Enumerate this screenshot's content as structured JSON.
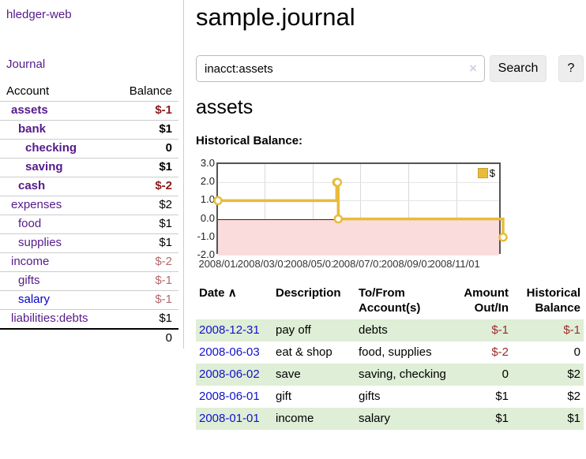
{
  "colors": {
    "link_purple": "#551a8b",
    "link_blue": "#0000cc",
    "negative_bold": "#8b1a1a",
    "negative_soft": "#b5686c",
    "negative_table": "#9e2a2b",
    "row_green": "#dfeed6",
    "series_gold": "#e8bb3a",
    "chart_negative_fill": "#fbdcdc",
    "zero_line": "#8b0000",
    "chart_border": "#545454"
  },
  "sidebar": {
    "brand": "hledger-web",
    "journal_link": "Journal",
    "table_headers": {
      "account": "Account",
      "balance": "Balance"
    },
    "accounts": [
      {
        "name": "assets",
        "balance": "$-1",
        "level": 0,
        "bold": true,
        "neg": "bold"
      },
      {
        "name": "bank",
        "balance": "$1",
        "level": 1,
        "bold": true,
        "neg": null
      },
      {
        "name": "checking",
        "balance": "0",
        "level": 2,
        "bold": true,
        "neg": null
      },
      {
        "name": "saving",
        "balance": "$1",
        "level": 2,
        "bold": true,
        "neg": null
      },
      {
        "name": "cash",
        "balance": "$-2",
        "level": 1,
        "bold": true,
        "neg": "bold"
      },
      {
        "name": "expenses",
        "balance": "$2",
        "level": 0,
        "bold": false,
        "neg": null
      },
      {
        "name": "food",
        "balance": "$1",
        "level": 1,
        "bold": false,
        "neg": null
      },
      {
        "name": "supplies",
        "balance": "$1",
        "level": 1,
        "bold": false,
        "neg": null
      },
      {
        "name": "income",
        "balance": "$-2",
        "level": 0,
        "bold": false,
        "neg": "soft"
      },
      {
        "name": "gifts",
        "balance": "$-1",
        "level": 1,
        "bold": false,
        "neg": "soft"
      },
      {
        "name": "salary",
        "balance": "$-1",
        "level": 1,
        "bold": false,
        "neg": "soft",
        "link_color": "blue"
      },
      {
        "name": "liabilities:debts",
        "balance": "$1",
        "level": 0,
        "bold": false,
        "neg": null
      }
    ],
    "total": "0"
  },
  "header": {
    "title": "sample.journal"
  },
  "search": {
    "value": "inacct:assets",
    "clear_icon": "×",
    "button_label": "Search",
    "help_label": "?"
  },
  "account_page": {
    "heading": "assets",
    "chart_title": "Historical Balance:"
  },
  "chart_data": {
    "type": "line",
    "style": "step",
    "title": "Historical Balance:",
    "series": [
      {
        "name": "$",
        "color": "#e8bb3a",
        "points": [
          [
            "2008-01-01",
            1
          ],
          [
            "2008-06-01",
            2
          ],
          [
            "2008-06-02",
            2
          ],
          [
            "2008-06-03",
            0
          ],
          [
            "2008-12-31",
            -1
          ]
        ]
      }
    ],
    "ylim": [
      -2,
      3
    ],
    "y_ticks": [
      "3.0",
      "2.0",
      "1.0",
      "0.0",
      "-1.0",
      "-2.0"
    ],
    "x_ticks": [
      "2008/01/01",
      "2008/03/01",
      "2008/05/01",
      "2008/07/01",
      "2008/09/01",
      "2008/11/01"
    ],
    "xlim": [
      "2008-01-01",
      "2008-12-31"
    ],
    "legend": {
      "label": "$",
      "position": "top-right"
    },
    "grid": true,
    "negative_region_shaded": true
  },
  "transactions": {
    "headers": {
      "date": "Date",
      "sort_icon": "∧",
      "description": "Description",
      "accounts": "To/From Account(s)",
      "amount": "Amount Out/In",
      "balance": "Historical Balance"
    },
    "rows": [
      {
        "date": "2008-12-31",
        "description": "pay off",
        "accounts": "debts",
        "amount": "$-1",
        "balance": "$-1"
      },
      {
        "date": "2008-06-03",
        "description": "eat & shop",
        "accounts": "food, supplies",
        "amount": "$-2",
        "balance": "0"
      },
      {
        "date": "2008-06-02",
        "description": "save",
        "accounts": "saving, checking",
        "amount": "0",
        "balance": "$2"
      },
      {
        "date": "2008-06-01",
        "description": "gift",
        "accounts": "gifts",
        "amount": "$1",
        "balance": "$2"
      },
      {
        "date": "2008-01-01",
        "description": "income",
        "accounts": "salary",
        "amount": "$1",
        "balance": "$1"
      }
    ]
  }
}
